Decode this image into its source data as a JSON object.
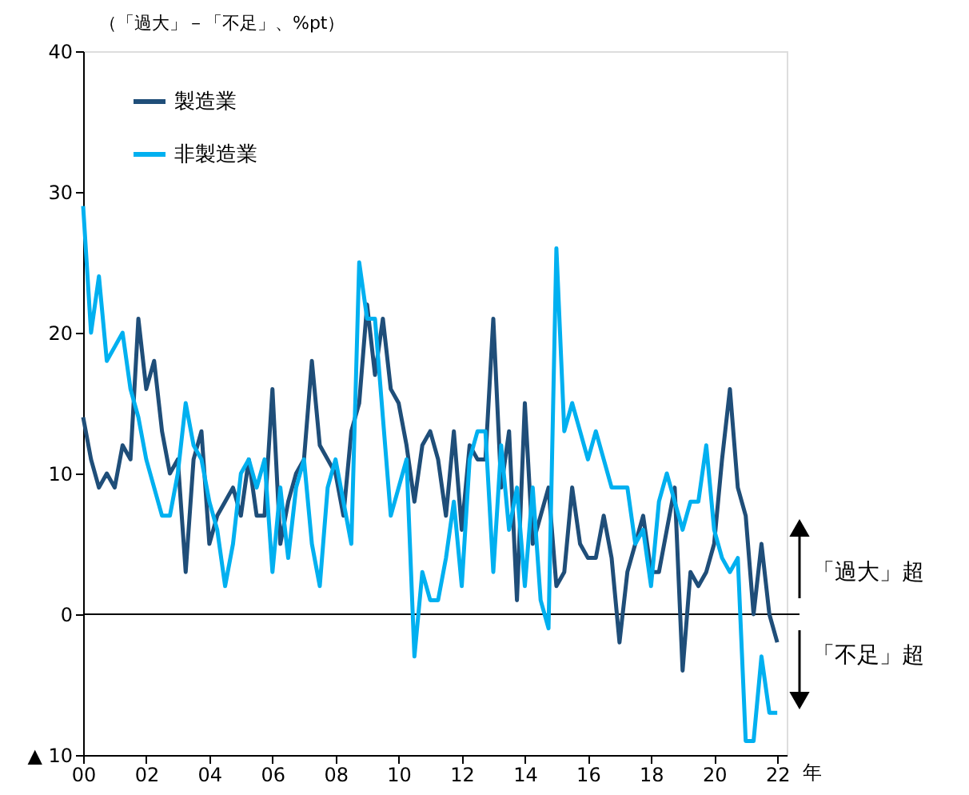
{
  "chart_data": {
    "type": "line",
    "ylabel": "（「過大」－「不足」、%pt）",
    "xlabel": "年",
    "x": [
      2000,
      2000.25,
      2000.5,
      2000.75,
      2001,
      2001.25,
      2001.5,
      2001.75,
      2002,
      2002.25,
      2002.5,
      2002.75,
      2003,
      2003.25,
      2003.5,
      2003.75,
      2004,
      2004.25,
      2004.5,
      2004.75,
      2005,
      2005.25,
      2005.5,
      2005.75,
      2006,
      2006.25,
      2006.5,
      2006.75,
      2007,
      2007.25,
      2007.5,
      2007.75,
      2008,
      2008.25,
      2008.5,
      2008.75,
      2009,
      2009.25,
      2009.5,
      2009.75,
      2010,
      2010.25,
      2010.5,
      2010.75,
      2011,
      2011.25,
      2011.5,
      2011.75,
      2012,
      2012.25,
      2012.5,
      2012.75,
      2013,
      2013.25,
      2013.5,
      2013.75,
      2014,
      2014.25,
      2014.5,
      2014.75,
      2015,
      2015.25,
      2015.5,
      2015.75,
      2016,
      2016.25,
      2016.5,
      2016.75,
      2017,
      2017.25,
      2017.5,
      2017.75,
      2018,
      2018.25,
      2018.5,
      2018.75,
      2019,
      2019.25,
      2019.5,
      2019.75,
      2020,
      2020.25,
      2020.5,
      2020.75,
      2021,
      2021.25,
      2021.5,
      2021.75,
      2022
    ],
    "series": [
      {
        "name": "製造業",
        "color": "#1f4e79",
        "values": [
          14,
          11,
          9,
          10,
          9,
          12,
          11,
          21,
          16,
          18,
          13,
          10,
          11,
          3,
          11,
          13,
          5,
          7,
          8,
          9,
          7,
          11,
          7,
          7,
          16,
          5,
          8,
          10,
          11,
          18,
          12,
          11,
          10,
          7,
          13,
          15,
          22,
          17,
          21,
          16,
          15,
          12,
          8,
          12,
          13,
          11,
          7,
          13,
          6,
          12,
          11,
          11,
          21,
          9,
          13,
          1,
          15,
          5,
          7,
          9,
          2,
          3,
          9,
          5,
          4,
          4,
          7,
          4,
          -2,
          3,
          5,
          7,
          3,
          3,
          6,
          9,
          -4,
          3,
          2,
          3,
          5,
          11,
          16,
          9,
          7,
          0,
          5,
          0,
          -2
        ]
      },
      {
        "name": "非製造業",
        "color": "#00b0f0",
        "values": [
          29,
          20,
          24,
          18,
          19,
          20,
          16,
          14,
          11,
          9,
          7,
          7,
          10,
          15,
          12,
          11,
          8,
          6,
          2,
          5,
          10,
          11,
          9,
          11,
          3,
          9,
          4,
          9,
          11,
          5,
          2,
          9,
          11,
          8,
          5,
          25,
          21,
          21,
          14,
          7,
          9,
          11,
          -3,
          3,
          1,
          1,
          4,
          8,
          2,
          11,
          13,
          13,
          3,
          12,
          6,
          9,
          2,
          9,
          1,
          -1,
          26,
          13,
          15,
          13,
          11,
          13,
          11,
          9,
          9,
          9,
          5,
          6,
          2,
          8,
          10,
          8,
          6,
          8,
          8,
          12,
          6,
          4,
          3,
          4,
          -9,
          -9,
          -3,
          -7,
          -7
        ]
      }
    ],
    "xlim": [
      2000,
      2022.3
    ],
    "xticks": [
      {
        "value": 2000,
        "label": "00"
      },
      {
        "value": 2002,
        "label": "02"
      },
      {
        "value": 2004,
        "label": "04"
      },
      {
        "value": 2006,
        "label": "06"
      },
      {
        "value": 2008,
        "label": "08"
      },
      {
        "value": 2010,
        "label": "10"
      },
      {
        "value": 2012,
        "label": "12"
      },
      {
        "value": 2014,
        "label": "14"
      },
      {
        "value": 2016,
        "label": "16"
      },
      {
        "value": 2018,
        "label": "18"
      },
      {
        "value": 2020,
        "label": "20"
      },
      {
        "value": 2022,
        "label": "22"
      }
    ],
    "ylim": [
      -10,
      40
    ],
    "yticks": [
      {
        "value": -10,
        "label": "▲ 10"
      },
      0,
      10,
      20,
      30,
      40
    ],
    "ref_lines": [
      {
        "axis": "y",
        "value": 0,
        "color": "#000000"
      }
    ],
    "annotations": [
      "「過大」超",
      "「不足」超"
    ],
    "legend": "top left",
    "grid": false,
    "marker": "none",
    "line_style": "solid"
  }
}
